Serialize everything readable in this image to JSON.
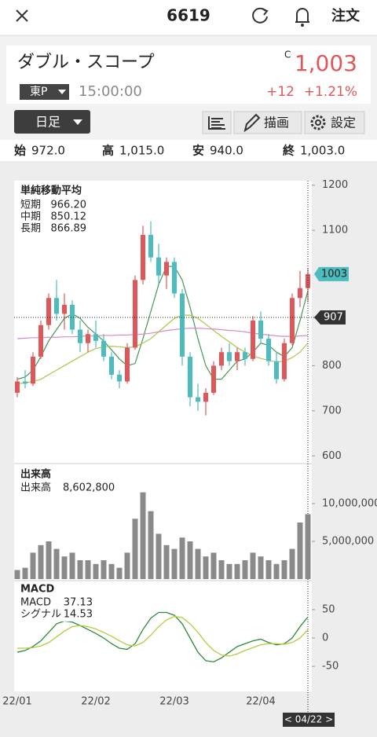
{
  "header": {
    "title": "6619",
    "order": "注文"
  },
  "stock": {
    "name": "ダブル・スコープ",
    "flag": "C",
    "price": "1,003",
    "market": "東P",
    "time": "15:00:00",
    "change": "+12",
    "change_pct": "+1.21%"
  },
  "toolbar": {
    "period": "日足",
    "draw": "描画",
    "settings": "設定"
  },
  "ohlc": [
    {
      "label": "始",
      "value": "972.0"
    },
    {
      "label": "高",
      "value": "1,015.0"
    },
    {
      "label": "安",
      "value": "940.0"
    },
    {
      "label": "終",
      "value": "1,003.0"
    }
  ],
  "chart_data": [
    {
      "type": "candlestick",
      "legend_title": "単純移動平均",
      "categories": [
        "22/01",
        null,
        null,
        null,
        null,
        null,
        null,
        null,
        null,
        null,
        "22/02",
        null,
        null,
        null,
        null,
        null,
        null,
        null,
        null,
        null,
        "22/03",
        null,
        null,
        null,
        null,
        null,
        null,
        null,
        null,
        null,
        null,
        "22/04",
        null,
        null,
        null,
        null,
        null,
        null
      ],
      "open": [
        740,
        765,
        760,
        820,
        890,
        950,
        915,
        935,
        880,
        850,
        870,
        855,
        820,
        780,
        765,
        840,
        990,
        1090,
        1040,
        1000,
        1030,
        960,
        820,
        730,
        720,
        740,
        800,
        830,
        810,
        830,
        815,
        900,
        860,
        810,
        770,
        850,
        950,
        972
      ],
      "high": [
        775,
        790,
        830,
        900,
        960,
        990,
        960,
        945,
        900,
        880,
        900,
        870,
        830,
        790,
        850,
        1000,
        1110,
        1120,
        1070,
        1040,
        1040,
        970,
        830,
        760,
        750,
        810,
        840,
        850,
        840,
        840,
        910,
        920,
        870,
        830,
        860,
        960,
        1010,
        1015
      ],
      "low": [
        730,
        750,
        755,
        815,
        880,
        900,
        880,
        870,
        830,
        830,
        840,
        810,
        770,
        750,
        760,
        835,
        980,
        1030,
        980,
        970,
        950,
        800,
        710,
        700,
        690,
        735,
        790,
        800,
        790,
        800,
        810,
        850,
        800,
        760,
        765,
        845,
        930,
        940
      ],
      "close": [
        765,
        760,
        820,
        890,
        950,
        915,
        935,
        880,
        850,
        870,
        855,
        820,
        780,
        765,
        840,
        990,
        1090,
        1040,
        1000,
        1030,
        960,
        820,
        730,
        720,
        740,
        800,
        830,
        810,
        830,
        815,
        900,
        860,
        810,
        770,
        850,
        950,
        972,
        1003
      ],
      "up_color": "#e0575a",
      "down_color": "#4dbcbf",
      "lines": [
        {
          "name": "短期",
          "color": "#3f9a52",
          "values": [
            770,
            775,
            790,
            820,
            855,
            880,
            905,
            915,
            905,
            885,
            870,
            855,
            835,
            815,
            800,
            805,
            860,
            920,
            980,
            1020,
            1020,
            990,
            930,
            860,
            800,
            770,
            770,
            790,
            810,
            815,
            830,
            850,
            845,
            830,
            820,
            840,
            900,
            966.2
          ]
        },
        {
          "name": "中期",
          "color": "#a9c74a",
          "values": [
            760,
            762,
            765,
            770,
            780,
            790,
            800,
            810,
            820,
            830,
            838,
            842,
            843,
            842,
            840,
            842,
            850,
            860,
            875,
            890,
            905,
            912,
            912,
            905,
            892,
            878,
            865,
            853,
            840,
            830,
            822,
            816,
            812,
            808,
            810,
            818,
            830,
            850.12
          ]
        },
        {
          "name": "長期",
          "color": "#d98bc6",
          "values": [
            860,
            861,
            862,
            862,
            863,
            863,
            864,
            864,
            865,
            866,
            866,
            867,
            867,
            868,
            868,
            869,
            870,
            872,
            875,
            878,
            880,
            882,
            883,
            883,
            882,
            881,
            880,
            878,
            877,
            875,
            872,
            870,
            868,
            866,
            865,
            865,
            866,
            866.89
          ]
        }
      ],
      "legend_values": [
        "966.20",
        "850.12",
        "866.89"
      ],
      "ylim": [
        590,
        1210
      ],
      "yticks": [
        600,
        700,
        800,
        1100,
        1200
      ],
      "last_price": 1003,
      "last_color": "#4dbcbf",
      "crosshair_price": 907,
      "crosshair_date": "< 04/22 >"
    },
    {
      "type": "bar",
      "legend_title": "出来高",
      "legend_name": "出来高",
      "legend_value": "8,602,800",
      "color": "#8a8a8a",
      "values": [
        1200000,
        1500000,
        3500000,
        4500000,
        5000000,
        4000000,
        3000000,
        3500000,
        2500000,
        2500000,
        2000000,
        2500000,
        2000000,
        1500000,
        3500000,
        8000000,
        11500000,
        9000000,
        6000000,
        4500000,
        4000000,
        5500000,
        5000000,
        4000000,
        3000000,
        3500000,
        2500000,
        2000000,
        2000000,
        2500000,
        3500000,
        3000000,
        2500000,
        2000000,
        2500000,
        4000000,
        7500000,
        8602800
      ],
      "ylim": [
        0,
        15000000
      ],
      "yticks": [
        {
          "value": 5000000,
          "label": "5,000,000"
        },
        {
          "value": 10000000,
          "label": "10,000,000"
        }
      ]
    },
    {
      "type": "line",
      "legend_title": "MACD",
      "series": [
        {
          "name": "MACD",
          "color": "#2e8b3a",
          "values": [
            -25,
            -22,
            -15,
            -5,
            10,
            25,
            30,
            28,
            22,
            15,
            8,
            0,
            -10,
            -18,
            -20,
            -10,
            15,
            35,
            45,
            45,
            40,
            25,
            0,
            -25,
            -40,
            -42,
            -35,
            -25,
            -15,
            -10,
            -5,
            -2,
            -8,
            -12,
            -10,
            0,
            20,
            37.13
          ]
        },
        {
          "name": "シグナル",
          "color": "#b5cc3c",
          "values": [
            -18,
            -18,
            -17,
            -14,
            -8,
            2,
            12,
            20,
            22,
            20,
            16,
            10,
            3,
            -5,
            -12,
            -14,
            -8,
            5,
            20,
            32,
            38,
            36,
            25,
            10,
            -8,
            -22,
            -30,
            -32,
            -28,
            -22,
            -17,
            -12,
            -10,
            -10,
            -11,
            -8,
            0,
            14.53
          ]
        }
      ],
      "legend_values": [
        "37.13",
        "14.53"
      ],
      "ylim": [
        -90,
        90
      ],
      "yticks": [
        -50,
        0,
        50
      ]
    }
  ]
}
